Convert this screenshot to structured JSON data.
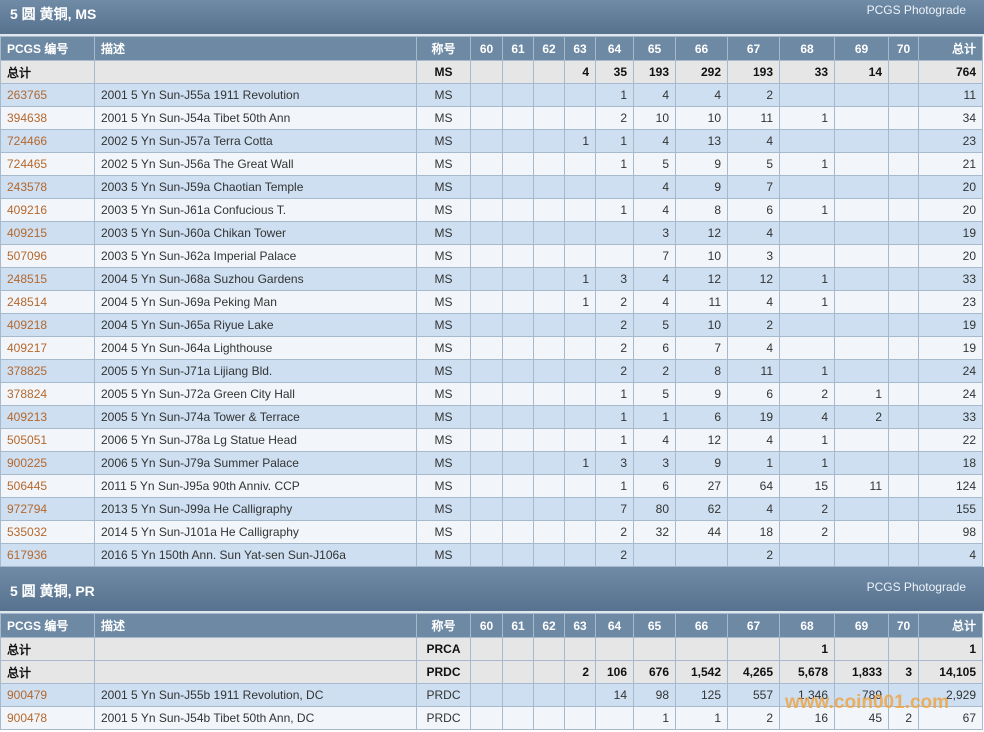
{
  "sections": [
    {
      "title": "5 圆 黄铜, MS",
      "link": "PCGS Photograde",
      "columns": [
        "PCGS 编号",
        "描述",
        "称号",
        60,
        61,
        62,
        63,
        64,
        65,
        66,
        67,
        68,
        69,
        70,
        "总计"
      ],
      "rows": [
        [
          "总计",
          null,
          "MS",
          null,
          null,
          null,
          4,
          35,
          193,
          292,
          193,
          33,
          14,
          null,
          764
        ],
        [
          "263765",
          "2001 5 Yn Sun-J55a 1911 Revolution",
          "MS",
          null,
          null,
          null,
          null,
          1,
          4,
          4,
          2,
          null,
          null,
          null,
          11
        ],
        [
          "394638",
          "2001 5 Yn Sun-J54a Tibet 50th Ann",
          "MS",
          null,
          null,
          null,
          null,
          2,
          10,
          10,
          11,
          1,
          null,
          null,
          34
        ],
        [
          "724466",
          "2002 5 Yn Sun-J57a Terra Cotta",
          "MS",
          null,
          null,
          null,
          1,
          1,
          4,
          13,
          4,
          null,
          null,
          null,
          23
        ],
        [
          "724465",
          "2002 5 Yn Sun-J56a The Great Wall",
          "MS",
          null,
          null,
          null,
          null,
          1,
          5,
          9,
          5,
          1,
          null,
          null,
          21
        ],
        [
          "243578",
          "2003 5 Yn Sun-J59a Chaotian Temple",
          "MS",
          null,
          null,
          null,
          null,
          null,
          4,
          9,
          7,
          null,
          null,
          null,
          20
        ],
        [
          "409216",
          "2003 5 Yn Sun-J61a Confucious T.",
          "MS",
          null,
          null,
          null,
          null,
          1,
          4,
          8,
          6,
          1,
          null,
          null,
          20
        ],
        [
          "409215",
          "2003 5 Yn Sun-J60a Chikan Tower",
          "MS",
          null,
          null,
          null,
          null,
          null,
          3,
          12,
          4,
          null,
          null,
          null,
          19
        ],
        [
          "507096",
          "2003 5 Yn Sun-J62a Imperial Palace",
          "MS",
          null,
          null,
          null,
          null,
          null,
          7,
          10,
          3,
          null,
          null,
          null,
          20
        ],
        [
          "248515",
          "2004 5 Yn Sun-J68a Suzhou Gardens",
          "MS",
          null,
          null,
          null,
          1,
          3,
          4,
          12,
          12,
          1,
          null,
          null,
          33
        ],
        [
          "248514",
          "2004 5 Yn Sun-J69a Peking Man",
          "MS",
          null,
          null,
          null,
          1,
          2,
          4,
          11,
          4,
          1,
          null,
          null,
          23
        ],
        [
          "409218",
          "2004 5 Yn Sun-J65a Riyue Lake",
          "MS",
          null,
          null,
          null,
          null,
          2,
          5,
          10,
          2,
          null,
          null,
          null,
          19
        ],
        [
          "409217",
          "2004 5 Yn Sun-J64a Lighthouse",
          "MS",
          null,
          null,
          null,
          null,
          2,
          6,
          7,
          4,
          null,
          null,
          null,
          19
        ],
        [
          "378825",
          "2005 5 Yn Sun-J71a Lijiang Bld.",
          "MS",
          null,
          null,
          null,
          null,
          2,
          2,
          8,
          11,
          1,
          null,
          null,
          24
        ],
        [
          "378824",
          "2005 5 Yn Sun-J72a Green City Hall",
          "MS",
          null,
          null,
          null,
          null,
          1,
          5,
          9,
          6,
          2,
          1,
          null,
          24
        ],
        [
          "409213",
          "2005 5 Yn Sun-J74a Tower & Terrace",
          "MS",
          null,
          null,
          null,
          null,
          1,
          1,
          6,
          19,
          4,
          2,
          null,
          33
        ],
        [
          "505051",
          "2006 5 Yn Sun-J78a Lg Statue Head",
          "MS",
          null,
          null,
          null,
          null,
          1,
          4,
          12,
          4,
          1,
          null,
          null,
          22
        ],
        [
          "900225",
          "2006 5 Yn Sun-J79a Summer Palace",
          "MS",
          null,
          null,
          null,
          1,
          3,
          3,
          9,
          1,
          1,
          null,
          null,
          18
        ],
        [
          "506445",
          "2011 5 Yn Sun-J95a 90th Anniv. CCP",
          "MS",
          null,
          null,
          null,
          null,
          1,
          6,
          27,
          64,
          15,
          11,
          null,
          124
        ],
        [
          "972794",
          "2013 5 Yn Sun-J99a He Calligraphy",
          "MS",
          null,
          null,
          null,
          null,
          7,
          80,
          62,
          4,
          2,
          null,
          null,
          155
        ],
        [
          "535032",
          "2014 5 Yn Sun-J101a He Calligraphy",
          "MS",
          null,
          null,
          null,
          null,
          2,
          32,
          44,
          18,
          2,
          null,
          null,
          98
        ],
        [
          "617936",
          "2016 5 Yn 150th Ann. Sun Yat-sen Sun-J106a",
          "MS",
          null,
          null,
          null,
          null,
          2,
          null,
          null,
          2,
          null,
          null,
          null,
          4
        ]
      ]
    },
    {
      "title": "5 圆 黄铜, PR",
      "link": "PCGS Photograde",
      "columns": [
        "PCGS 编号",
        "描述",
        "称号",
        60,
        61,
        62,
        63,
        64,
        65,
        66,
        67,
        68,
        69,
        70,
        "总计"
      ],
      "rows": [
        [
          "总计",
          null,
          "PRCA",
          null,
          null,
          null,
          null,
          null,
          null,
          null,
          null,
          1,
          null,
          null,
          1
        ],
        [
          "总计",
          null,
          "PRDC",
          null,
          null,
          null,
          2,
          106,
          676,
          "1,542",
          "4,265",
          "5,678",
          "1,833",
          3,
          "14,105"
        ],
        [
          "900479",
          "2001 5 Yn Sun-J55b 1911 Revolution, DC",
          "PRDC",
          null,
          null,
          null,
          null,
          14,
          98,
          125,
          557,
          "1,346",
          789,
          null,
          "2,929"
        ],
        [
          "900478",
          "2001 5 Yn Sun-J54b Tibet 50th Ann, DC",
          "PRDC",
          null,
          null,
          null,
          null,
          null,
          1,
          1,
          2,
          16,
          45,
          2,
          67
        ]
      ]
    }
  ],
  "watermark": "www.coin001.com"
}
